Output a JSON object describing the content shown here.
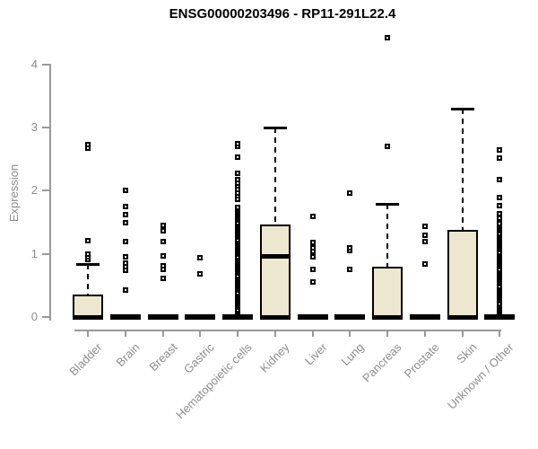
{
  "chart_data": {
    "type": "boxplot",
    "title": "ENSG00000203496 - RP11-291L22.4",
    "ylabel": "Expression",
    "xlabel": "",
    "y_ticks": [
      0,
      1,
      2,
      3,
      4
    ],
    "ylim": [
      0,
      4.5
    ],
    "grid": "off",
    "legend": "none",
    "colors": {
      "box_fill": "#EDE7CF",
      "box_stroke": "#000000",
      "axis_line": "#999999",
      "axis_text": "#8c8c8c",
      "title_text": "#000000"
    },
    "categories": [
      "Bladder",
      "Brain",
      "Breast",
      "Gastric",
      "Hematopoietic cells",
      "Kidney",
      "Liver",
      "Lung",
      "Pancreas",
      "Prostate",
      "Skin",
      "Unknown / Other"
    ],
    "series": [
      {
        "category": "Bladder",
        "q1": 0,
        "median": 0,
        "q3": 0.36,
        "whisker_low": 0,
        "whisker_high": 0.84,
        "outliers": [
          0.91,
          0.95,
          0.99,
          1.21,
          2.68,
          2.73
        ],
        "strips": []
      },
      {
        "category": "Brain",
        "q1": 0,
        "median": 0,
        "q3": 0,
        "whisker_low": 0,
        "whisker_high": 0,
        "outliers": [
          0.42,
          0.74,
          0.79,
          0.85,
          0.95,
          1.2,
          1.49,
          1.62,
          1.75,
          2.01
        ],
        "strips": []
      },
      {
        "category": "Breast",
        "q1": 0,
        "median": 0,
        "q3": 0,
        "whisker_low": 0,
        "whisker_high": 0,
        "outliers": [
          0.61,
          0.75,
          0.81,
          0.97,
          1.19,
          1.36,
          1.45
        ],
        "strips": []
      },
      {
        "category": "Gastric",
        "q1": 0,
        "median": 0,
        "q3": 0,
        "whisker_low": 0,
        "whisker_high": 0,
        "outliers": [
          0.68,
          0.94
        ],
        "strips": []
      },
      {
        "category": "Hematopoietic cells",
        "q1": 0,
        "median": 0,
        "q3": 0,
        "whisker_low": 0,
        "whisker_high": 0,
        "outliers": [
          1.73,
          1.87,
          1.92,
          1.97,
          2.02,
          2.07,
          2.12,
          2.17,
          2.27,
          2.53,
          2.7,
          2.75
        ],
        "strips": [
          {
            "from": 0.09,
            "to": 1.71,
            "step": 0.03
          }
        ]
      },
      {
        "category": "Kidney",
        "q1": 0,
        "median": 0.97,
        "q3": 1.47,
        "whisker_low": 0,
        "whisker_high": 3.0,
        "outliers": [],
        "strips": []
      },
      {
        "category": "Liver",
        "q1": 0,
        "median": 0,
        "q3": 0,
        "whisker_low": 0,
        "whisker_high": 0,
        "outliers": [
          0.56,
          0.75,
          0.95,
          1.04,
          1.1,
          1.18,
          1.59
        ],
        "strips": []
      },
      {
        "category": "Lung",
        "q1": 0,
        "median": 0,
        "q3": 0,
        "whisker_low": 0,
        "whisker_high": 0,
        "outliers": [
          0.76,
          1.05,
          1.09,
          1.96
        ],
        "strips": []
      },
      {
        "category": "Pancreas",
        "q1": 0,
        "median": 0,
        "q3": 0.8,
        "whisker_low": 0,
        "whisker_high": 1.79,
        "outliers": [
          2.7,
          4.43
        ],
        "strips": []
      },
      {
        "category": "Prostate",
        "q1": 0,
        "median": 0,
        "q3": 0,
        "whisker_low": 0,
        "whisker_high": 0,
        "outliers": [
          0.84,
          1.19,
          1.3,
          1.43
        ],
        "strips": []
      },
      {
        "category": "Skin",
        "q1": 0,
        "median": 0,
        "q3": 1.38,
        "whisker_low": 0,
        "whisker_high": 3.3,
        "outliers": [],
        "strips": []
      },
      {
        "category": "Unknown / Other",
        "q1": 0,
        "median": 0,
        "q3": 0,
        "whisker_low": 0,
        "whisker_high": 0,
        "outliers": [
          1.56,
          1.63,
          1.76,
          1.89,
          2.17,
          2.52,
          2.65
        ],
        "strips": [
          {
            "from": 0.07,
            "to": 1.48,
            "step": 0.03
          }
        ]
      }
    ]
  }
}
